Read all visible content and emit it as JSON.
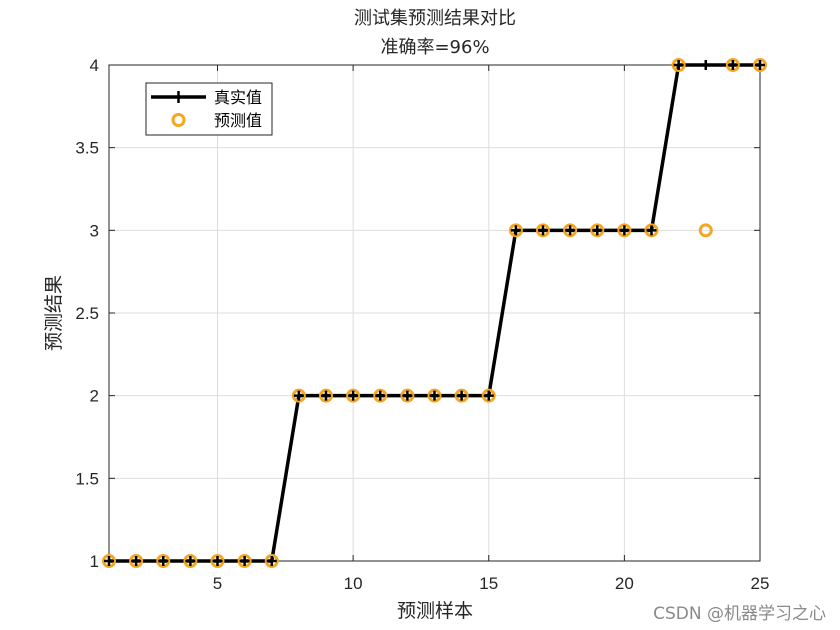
{
  "chart_data": {
    "type": "line",
    "title": "测试集预测结果对比",
    "subtitle": "准确率=96%",
    "xlabel": "预测样本",
    "ylabel": "预测结果",
    "xlim": [
      1,
      25
    ],
    "ylim": [
      1,
      4
    ],
    "xticks": [
      5,
      10,
      15,
      20,
      25
    ],
    "yticks": [
      1,
      1.5,
      2,
      2.5,
      3,
      3.5,
      4
    ],
    "xtick_labels": [
      "5",
      "10",
      "15",
      "20",
      "25"
    ],
    "ytick_labels": [
      "1",
      "1.5",
      "2",
      "2.5",
      "3",
      "3.5",
      "4"
    ],
    "grid": true,
    "legend_position": "top-left",
    "x": [
      1,
      2,
      3,
      4,
      5,
      6,
      7,
      8,
      9,
      10,
      11,
      12,
      13,
      14,
      15,
      16,
      17,
      18,
      19,
      20,
      21,
      22,
      23,
      24,
      25
    ],
    "series": [
      {
        "name": "真实值",
        "style": "line-plus",
        "color": "#000000",
        "values": [
          1,
          1,
          1,
          1,
          1,
          1,
          1,
          2,
          2,
          2,
          2,
          2,
          2,
          2,
          2,
          3,
          3,
          3,
          3,
          3,
          3,
          4,
          4,
          4,
          4
        ]
      },
      {
        "name": "预测值",
        "style": "circle",
        "color": "#f5a623",
        "values": [
          1,
          1,
          1,
          1,
          1,
          1,
          1,
          2,
          2,
          2,
          2,
          2,
          2,
          2,
          2,
          3,
          3,
          3,
          3,
          3,
          3,
          4,
          3,
          4,
          4
        ]
      }
    ]
  },
  "watermark": "CSDN @机器学习之心"
}
